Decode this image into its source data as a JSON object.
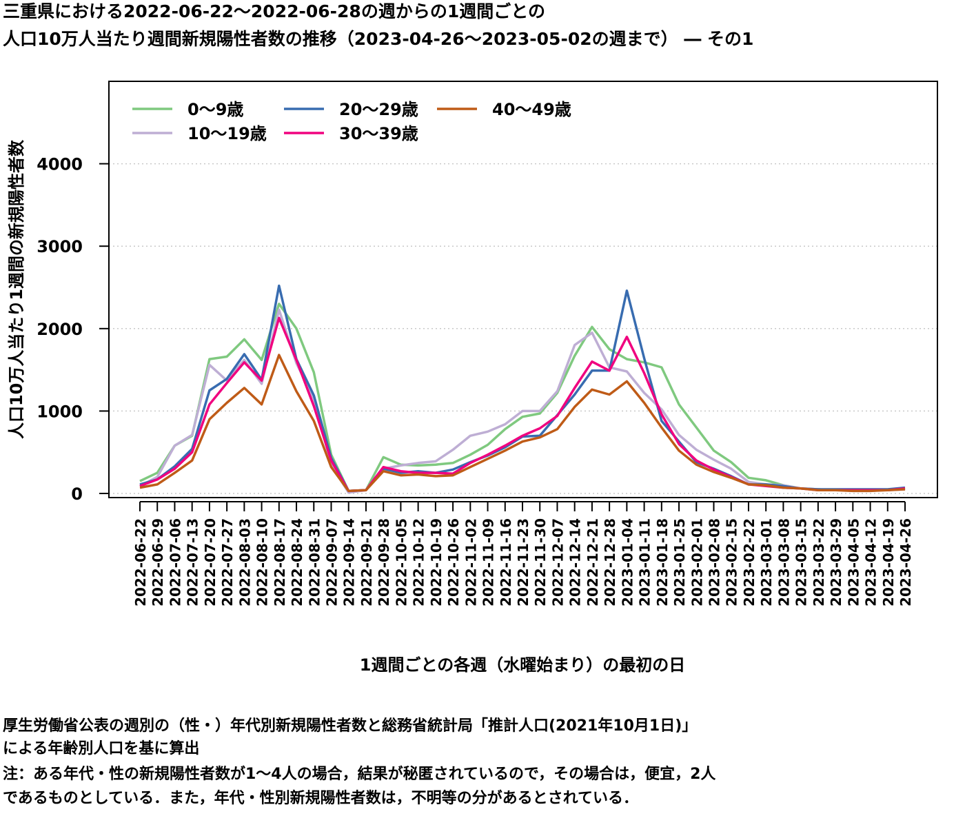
{
  "title": {
    "line1": "三重県における2022-06-22～2022-06-28の週からの1週間ごとの",
    "line2": "人口10万人当たり週間新規陽性者数の推移（2023-04-26～2023-05-02の週まで） ― その1"
  },
  "footnote": {
    "line1": "厚生労働省公表の週別の（性・）年代別新規陽性者数と総務省統計局「推計人口(2021年10月1日)」",
    "line2": "による年齢別人口を基に算出",
    "line3": "注：ある年代・性の新規陽性者数が1～4人の場合，結果が秘匿されているので，その場合は，便宜，2人",
    "line4": "であるものとしている．また，年代・性別新規陽性者数は，不明等の分があるとされている．"
  },
  "chart_data": {
    "type": "line",
    "xlabel": "1週間ごとの各週（水曜始まり）の最初の日",
    "ylabel": "人口10万人当たり1週間の新規陽性者数",
    "ylim": [
      -50,
      5000
    ],
    "yticks": [
      0,
      1000,
      2000,
      3000,
      4000
    ],
    "grid": "horizontal dotted",
    "legend_position": "top-left",
    "categories": [
      "2022-06-22",
      "2022-06-29",
      "2022-07-06",
      "2022-07-13",
      "2022-07-20",
      "2022-07-27",
      "2022-08-03",
      "2022-08-10",
      "2022-08-17",
      "2022-08-24",
      "2022-08-31",
      "2022-09-07",
      "2022-09-14",
      "2022-09-21",
      "2022-09-28",
      "2022-10-05",
      "2022-10-12",
      "2022-10-19",
      "2022-10-26",
      "2022-11-02",
      "2022-11-09",
      "2022-11-16",
      "2022-11-23",
      "2022-11-30",
      "2022-12-07",
      "2022-12-14",
      "2022-12-21",
      "2022-12-28",
      "2023-01-04",
      "2023-01-11",
      "2023-01-18",
      "2023-01-25",
      "2023-02-01",
      "2023-02-08",
      "2023-02-15",
      "2023-02-22",
      "2023-03-01",
      "2023-03-08",
      "2023-03-15",
      "2023-03-22",
      "2023-03-29",
      "2023-04-05",
      "2023-04-12",
      "2023-04-19",
      "2023-04-26"
    ],
    "series": [
      {
        "name": "0～9歳",
        "color": "#7fc97f",
        "values": [
          150,
          250,
          580,
          700,
          1630,
          1660,
          1870,
          1620,
          2300,
          2000,
          1470,
          470,
          30,
          40,
          440,
          350,
          340,
          350,
          370,
          470,
          590,
          780,
          930,
          970,
          1220,
          1670,
          2020,
          1750,
          1630,
          1590,
          1530,
          1080,
          800,
          520,
          380,
          190,
          160,
          100,
          60,
          50,
          40,
          40,
          40,
          40,
          60
        ]
      },
      {
        "name": "10～19歳",
        "color": "#beaed4",
        "values": [
          90,
          200,
          580,
          710,
          1560,
          1370,
          1620,
          1330,
          2230,
          1580,
          1150,
          350,
          10,
          40,
          300,
          340,
          370,
          390,
          530,
          700,
          750,
          840,
          1000,
          1000,
          1240,
          1800,
          1950,
          1530,
          1480,
          1220,
          1020,
          710,
          530,
          410,
          300,
          140,
          110,
          100,
          60,
          50,
          40,
          40,
          40,
          40,
          50
        ]
      },
      {
        "name": "20～29歳",
        "color": "#386cb0",
        "values": [
          110,
          170,
          330,
          540,
          1250,
          1390,
          1690,
          1380,
          2520,
          1630,
          1190,
          430,
          30,
          40,
          300,
          250,
          270,
          250,
          290,
          380,
          460,
          560,
          690,
          700,
          950,
          1200,
          1490,
          1490,
          2460,
          1640,
          880,
          630,
          380,
          300,
          210,
          110,
          110,
          90,
          60,
          50,
          50,
          50,
          50,
          50,
          70
        ]
      },
      {
        "name": "30～39歳",
        "color": "#f0027f",
        "values": [
          90,
          170,
          300,
          500,
          1080,
          1340,
          1590,
          1370,
          2130,
          1620,
          1060,
          400,
          30,
          40,
          320,
          270,
          250,
          250,
          240,
          370,
          470,
          580,
          700,
          790,
          940,
          1280,
          1600,
          1490,
          1900,
          1460,
          960,
          600,
          400,
          290,
          200,
          110,
          90,
          70,
          60,
          40,
          40,
          40,
          40,
          40,
          60
        ]
      },
      {
        "name": "40～49歳",
        "color": "#bf5b17",
        "values": [
          70,
          110,
          250,
          400,
          900,
          1100,
          1280,
          1080,
          1680,
          1240,
          880,
          320,
          30,
          40,
          270,
          220,
          230,
          210,
          220,
          320,
          420,
          520,
          630,
          680,
          780,
          1050,
          1260,
          1200,
          1360,
          1100,
          800,
          520,
          350,
          260,
          190,
          110,
          100,
          70,
          60,
          40,
          40,
          30,
          30,
          40,
          50
        ]
      }
    ]
  }
}
